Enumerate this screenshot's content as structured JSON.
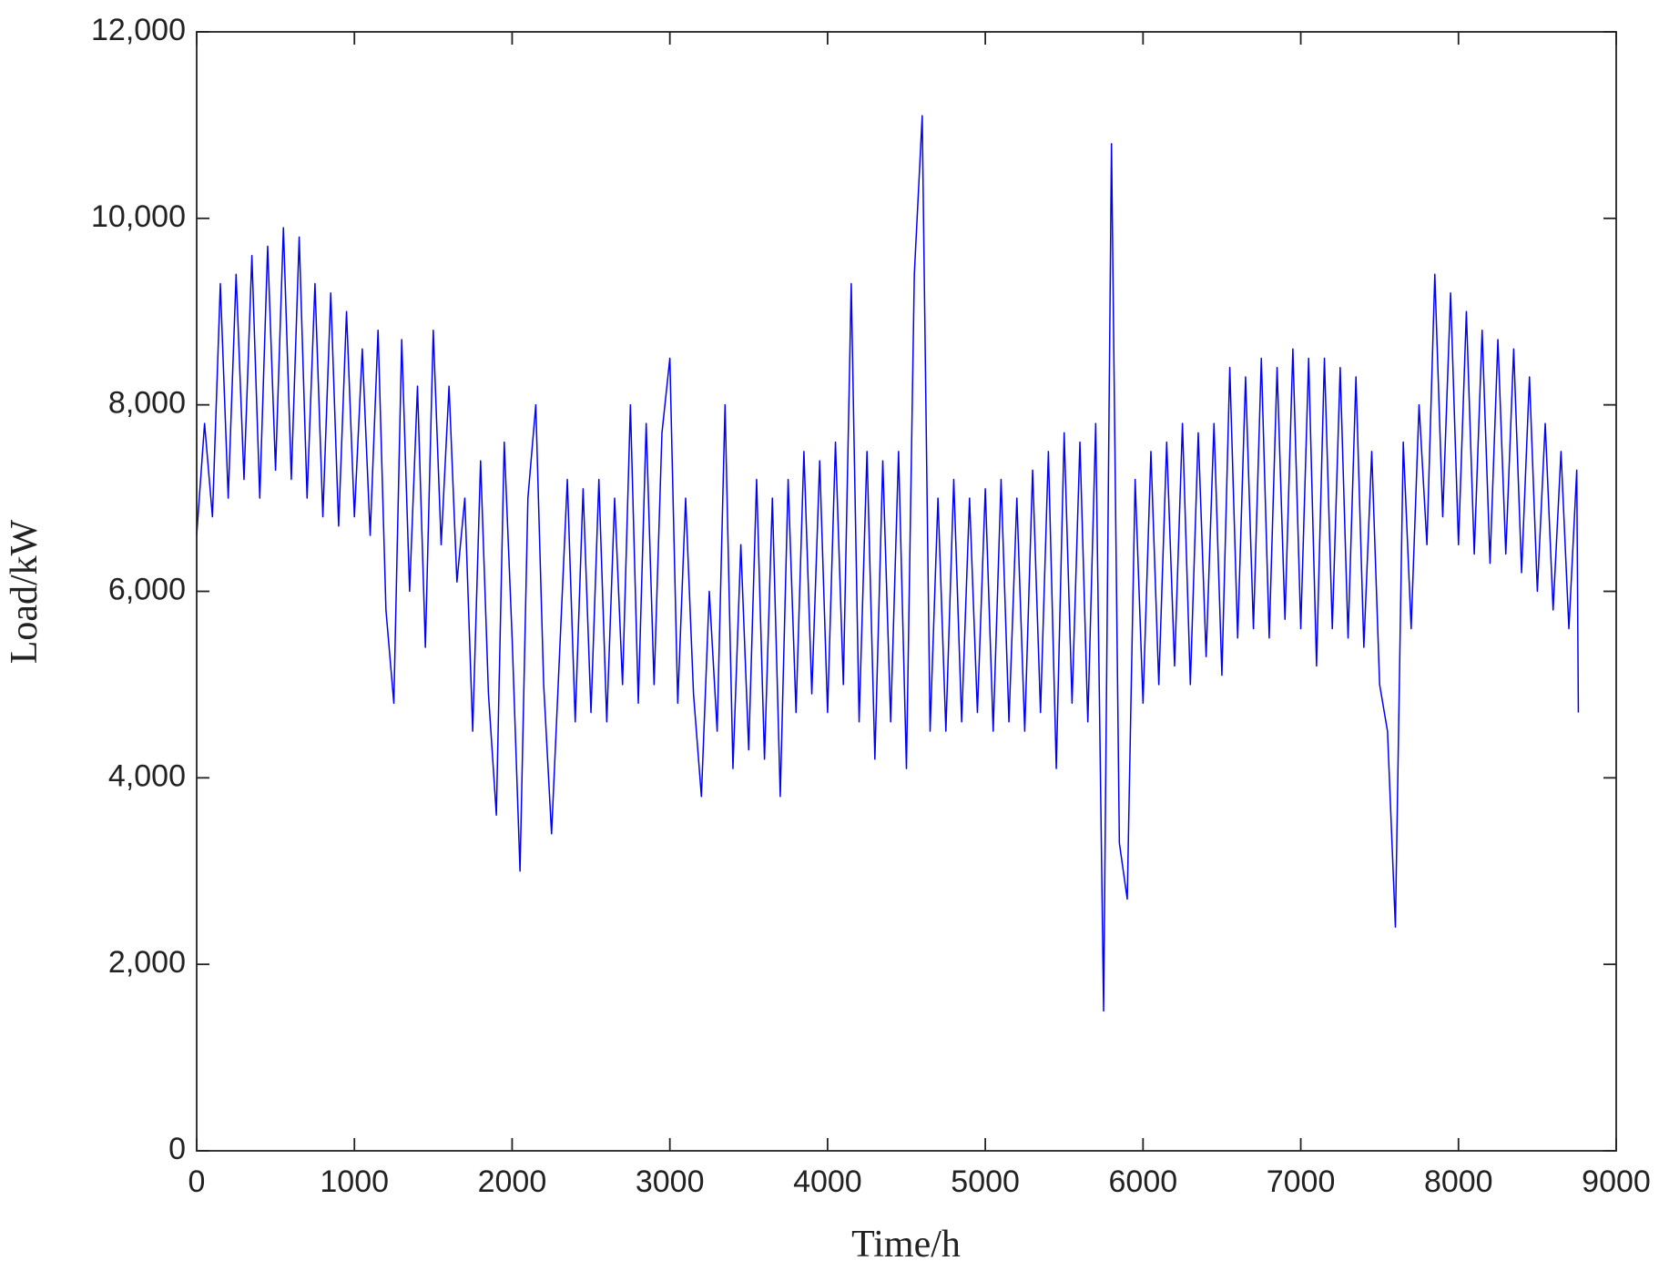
{
  "chart_data": {
    "type": "line",
    "x_label": "Time/h",
    "y_label": "Load/kW",
    "xlim": [
      0,
      9000
    ],
    "xticks": [
      0,
      1000,
      2000,
      3000,
      4000,
      5000,
      6000,
      7000,
      8000,
      9000
    ],
    "ylim": [
      0,
      12000
    ],
    "yticks": [
      0,
      {
        "value": 2000,
        "label": "2,000"
      },
      {
        "value": 4000,
        "label": "4,000"
      },
      {
        "value": 6000,
        "label": "6,000"
      },
      {
        "value": 8000,
        "label": "8,000"
      },
      {
        "value": 10000,
        "label": "10,000"
      },
      {
        "value": 12000,
        "label": "12,000"
      }
    ],
    "grid": false,
    "x": [
      0,
      50,
      100,
      150,
      200,
      250,
      300,
      350,
      400,
      450,
      500,
      550,
      600,
      650,
      700,
      750,
      800,
      850,
      900,
      950,
      1000,
      1050,
      1100,
      1150,
      1200,
      1250,
      1300,
      1350,
      1400,
      1450,
      1500,
      1550,
      1600,
      1650,
      1700,
      1750,
      1800,
      1850,
      1900,
      1950,
      2000,
      2050,
      2100,
      2150,
      2200,
      2250,
      2300,
      2350,
      2400,
      2450,
      2500,
      2550,
      2600,
      2650,
      2700,
      2750,
      2800,
      2850,
      2900,
      2950,
      3000,
      3050,
      3100,
      3150,
      3200,
      3250,
      3300,
      3350,
      3400,
      3450,
      3500,
      3550,
      3600,
      3650,
      3700,
      3750,
      3800,
      3850,
      3900,
      3950,
      4000,
      4050,
      4100,
      4150,
      4200,
      4250,
      4300,
      4350,
      4400,
      4450,
      4500,
      4550,
      4600,
      4650,
      4700,
      4750,
      4800,
      4850,
      4900,
      4950,
      5000,
      5050,
      5100,
      5150,
      5200,
      5250,
      5300,
      5350,
      5400,
      5450,
      5500,
      5550,
      5600,
      5650,
      5700,
      5750,
      5800,
      5850,
      5900,
      5950,
      6000,
      6050,
      6100,
      6150,
      6200,
      6250,
      6300,
      6350,
      6400,
      6450,
      6500,
      6550,
      6600,
      6650,
      6700,
      6750,
      6800,
      6850,
      6900,
      6950,
      7000,
      7050,
      7100,
      7150,
      7200,
      7250,
      7300,
      7350,
      7400,
      7450,
      7500,
      7550,
      7600,
      7650,
      7700,
      7750,
      7800,
      7850,
      7900,
      7950,
      8000,
      8050,
      8100,
      8150,
      8200,
      8250,
      8300,
      8350,
      8400,
      8450,
      8500,
      8550,
      8600,
      8650,
      8700,
      8750,
      8760
    ],
    "series": [
      {
        "name": "Load",
        "color": "#0000ff",
        "values": [
          6600,
          7800,
          6800,
          9300,
          7000,
          9400,
          7200,
          9600,
          7000,
          9700,
          7300,
          9900,
          7200,
          9800,
          7000,
          9300,
          6800,
          9200,
          6700,
          9000,
          6800,
          8600,
          6600,
          8800,
          5800,
          4800,
          8700,
          6000,
          8200,
          5400,
          8800,
          6500,
          8200,
          6100,
          7000,
          4500,
          7400,
          4900,
          3600,
          7600,
          5500,
          3000,
          7000,
          8000,
          5000,
          3400,
          5300,
          7200,
          4600,
          7100,
          4700,
          7200,
          4600,
          7000,
          5000,
          8000,
          4800,
          7800,
          5000,
          7700,
          8500,
          4800,
          7000,
          4900,
          3800,
          6000,
          4500,
          8000,
          4100,
          6500,
          4300,
          7200,
          4200,
          7000,
          3800,
          7200,
          4700,
          7500,
          4900,
          7400,
          4700,
          7600,
          5000,
          9300,
          4600,
          7500,
          4200,
          7400,
          4600,
          7500,
          4100,
          9400,
          11100,
          4500,
          7000,
          4500,
          7200,
          4600,
          7000,
          4700,
          7100,
          4500,
          7200,
          4600,
          7000,
          4500,
          7300,
          4700,
          7500,
          4100,
          7700,
          4800,
          7600,
          4600,
          7800,
          1500,
          10800,
          3300,
          2700,
          7200,
          4800,
          7500,
          5000,
          7600,
          5200,
          7800,
          5000,
          7700,
          5300,
          7800,
          5100,
          8400,
          5500,
          8300,
          5600,
          8500,
          5500,
          8400,
          5700,
          8600,
          5600,
          8500,
          5200,
          8500,
          5600,
          8400,
          5500,
          8300,
          5400,
          7500,
          5000,
          4500,
          2400,
          7600,
          5600,
          8000,
          6500,
          9400,
          6800,
          9200,
          6500,
          9000,
          6400,
          8800,
          6300,
          8700,
          6400,
          8600,
          6200,
          8300,
          6000,
          7800,
          5800,
          7500,
          5600,
          7300,
          4700
        ]
      }
    ]
  }
}
